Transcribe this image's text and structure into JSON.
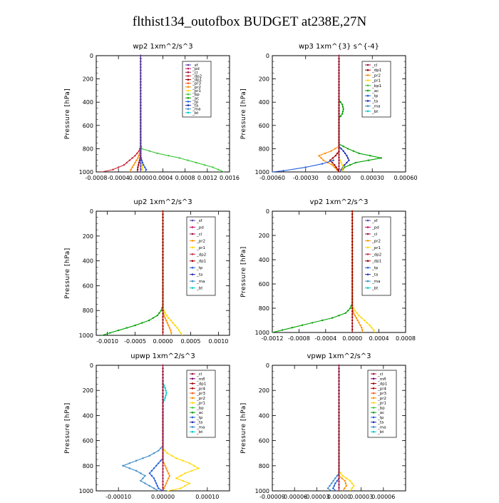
{
  "title": "flthist134_outofbox  BUDGET at238E,27N",
  "colors": {
    "sf": "#5a3fb0",
    "pd": "#d01070",
    "cl": "#a01040",
    "dp2": "#c8283c",
    "dp1": "#a00000",
    "pr3": "#ff5a1e",
    "pr2": "#ff8c00",
    "pr1": "#ffd700",
    "bp": "#3cc83c",
    "ac": "#00a000",
    "tp": "#1e5adc",
    "ta": "#1e28b4",
    "ma": "#3c8cc8",
    "bt": "#00c8c8",
    "mfl": "#780078",
    "pr4": "#b40000"
  },
  "chart_data": [
    {
      "type": "line",
      "title": "wp2   1xm^2/s^3",
      "ylabel": "Pressure [hPa]",
      "xlim": [
        -0.0008,
        0.0016
      ],
      "xticks": [
        -0.0008,
        -0.0004,
        0.0,
        0.0004,
        0.0008,
        0.0012,
        0.0016
      ],
      "xtick_labels": [
        "-0.0008",
        "-0.0004",
        "0.00000",
        "0.0004",
        "0.0008",
        "0.0012",
        "0.0016"
      ],
      "ylim": [
        0,
        1000
      ],
      "yticks": [
        0,
        200,
        400,
        600,
        800,
        1000
      ],
      "legend": [
        "_sf",
        "_pd",
        "_cl",
        "_dp2",
        "_dp1",
        "_pr3",
        "_pr2",
        "_pr1",
        "_bp",
        "_ac",
        "_tp",
        "_ta",
        "_ma",
        "_bt"
      ],
      "series": [
        {
          "key": "bp",
          "p": [
            0,
            760,
            800,
            840,
            880,
            920,
            960,
            1000
          ],
          "x": [
            0,
            0,
            2e-05,
            0.0003,
            0.0007,
            0.001,
            0.0013,
            0.0015
          ]
        },
        {
          "key": "dp2",
          "p": [
            0,
            780,
            820,
            860,
            900,
            940,
            980,
            1000
          ],
          "x": [
            0,
            0,
            -3e-05,
            -0.0001,
            -0.0002,
            -0.0003,
            -0.0005,
            -0.0007
          ]
        },
        {
          "key": "pr2",
          "p": [
            0,
            800,
            840,
            880,
            920,
            960,
            1000
          ],
          "x": [
            0,
            0,
            -2e-05,
            -5e-05,
            -0.0001,
            -0.00015,
            -0.0002
          ]
        },
        {
          "key": "pr1",
          "p": [
            0,
            840,
            880,
            920,
            960,
            1000
          ],
          "x": [
            0,
            0,
            1e-05,
            2e-05,
            3e-05,
            2e-05
          ]
        },
        {
          "key": "tp",
          "p": [
            0,
            860,
            900,
            940,
            980,
            1000
          ],
          "x": [
            0,
            0,
            2e-05,
            5e-05,
            0.0001,
            8e-05
          ]
        },
        {
          "key": "dp1",
          "p": [
            0,
            200,
            400,
            600,
            800,
            840,
            880,
            920,
            960,
            1000
          ],
          "x": [
            0,
            0,
            0,
            0,
            0,
            0,
            -1e-05,
            -3e-05,
            -5e-05,
            -6e-05
          ]
        },
        {
          "key": "sf",
          "p": [
            0,
            200,
            400,
            600,
            800,
            900,
            1000
          ],
          "x": [
            0,
            0,
            0,
            0,
            0,
            0,
            0
          ]
        }
      ]
    },
    {
      "type": "line",
      "title": "wp3   1xm^{3} s^{-4}",
      "ylabel": "Pressure [hPa]",
      "xlim": [
        -0.0006,
        0.0006
      ],
      "xticks": [
        -0.0006,
        -0.0003,
        0.0,
        0.0003,
        0.0006
      ],
      "xtick_labels": [
        "-0.00060",
        "-0.00030",
        "0.00000",
        "0.00030",
        "0.00060"
      ],
      "ylim": [
        0,
        1000
      ],
      "yticks": [
        0,
        200,
        400,
        600,
        800,
        1000
      ],
      "legend": [
        "_cl",
        "_dp1",
        "_pr2",
        "_pr1",
        "_bp1",
        "_ac",
        "_tp",
        "_ta",
        "_ma",
        "_bt"
      ],
      "series": [
        {
          "key": "ac",
          "p": [
            0,
            760,
            800,
            840,
            880,
            920,
            960,
            1000
          ],
          "x": [
            0,
            0,
            8e-05,
            0.00018,
            0.00038,
            0.00015,
            5e-05,
            2e-05
          ]
        },
        {
          "key": "ac",
          "p": [
            380,
            420,
            460,
            500,
            540
          ],
          "x": [
            0,
            3e-05,
            4e-05,
            3e-05,
            0
          ]
        },
        {
          "key": "pr2",
          "p": [
            0,
            780,
            820,
            860,
            900,
            940,
            980,
            1000
          ],
          "x": [
            0,
            0,
            -7e-05,
            -0.00018,
            -0.00014,
            -6e-05,
            -2e-05,
            0
          ]
        },
        {
          "key": "ta",
          "p": [
            0,
            780,
            820,
            860,
            900,
            940,
            980,
            1000
          ],
          "x": [
            0,
            0,
            4e-05,
            7e-05,
            9e-05,
            5e-05,
            2e-05,
            1e-05
          ]
        },
        {
          "key": "dp1",
          "p": [
            0,
            820,
            860,
            900,
            940,
            980,
            1000
          ],
          "x": [
            0,
            0,
            -3e-05,
            -8e-05,
            -4e-05,
            -1e-05,
            0
          ]
        },
        {
          "key": "tp",
          "p": [
            900,
            930,
            960,
            990,
            1000
          ],
          "x": [
            -5e-05,
            -0.00015,
            -0.0003,
            -0.0005,
            -0.0006
          ]
        },
        {
          "key": "pr1",
          "p": [
            0,
            880,
            920,
            960,
            1000
          ],
          "x": [
            0,
            0,
            2e-05,
            4e-05,
            2e-05
          ]
        },
        {
          "key": "cl",
          "p": [
            0,
            200,
            400,
            600,
            800,
            900,
            1000
          ],
          "x": [
            0,
            0,
            0,
            0,
            0,
            0,
            0
          ]
        }
      ]
    },
    {
      "type": "line",
      "title": "up2   1xm^2/s^3",
      "ylabel": "Pressure [hPa]",
      "xlim": [
        -0.0012,
        0.0012
      ],
      "xticks": [
        -0.001,
        -0.0005,
        0.0,
        0.0005,
        0.001
      ],
      "xtick_labels": [
        "-0.0010",
        "-0.0005",
        "0.0000",
        "0.0005",
        "0.0010"
      ],
      "ylim": [
        0,
        1000
      ],
      "yticks": [
        0,
        200,
        400,
        600,
        800,
        1000
      ],
      "legend": [
        "_sf",
        "_pd",
        "_cl",
        "_pr2",
        "_pr1",
        "_dp2",
        "_dp1",
        "_tp",
        "_ta",
        "_ma",
        "_bt"
      ],
      "series": [
        {
          "key": "ac",
          "p": [
            0,
            760,
            800,
            840,
            880,
            920,
            960,
            1000
          ],
          "x": [
            0,
            0,
            -3e-05,
            -0.0001,
            -0.00025,
            -0.0005,
            -0.0008,
            -0.0011
          ]
        },
        {
          "key": "pr1",
          "p": [
            0,
            780,
            820,
            860,
            900,
            940,
            980,
            1000
          ],
          "x": [
            0,
            0,
            4e-05,
            0.0001,
            0.00018,
            0.00026,
            0.00032,
            0.00035
          ]
        },
        {
          "key": "pr2",
          "p": [
            0,
            800,
            840,
            880,
            920,
            960,
            1000
          ],
          "x": [
            0,
            0,
            2e-05,
            6e-05,
            0.0001,
            0.00014,
            0.00016
          ]
        },
        {
          "key": "dp1",
          "p": [
            0,
            200,
            400,
            600,
            800,
            1000
          ],
          "x": [
            0,
            0,
            0,
            0,
            0,
            0
          ]
        }
      ]
    },
    {
      "type": "line",
      "title": "vp2   1xm^2/s^3",
      "ylabel": "Pressure [hPa]",
      "xlim": [
        -0.0012,
        0.0008
      ],
      "xticks": [
        -0.0012,
        -0.0008,
        -0.0004,
        0.0,
        0.0004,
        0.0008
      ],
      "xtick_labels": [
        "-0.0012",
        "-0.0008",
        "-0.0004",
        "0.0000",
        "0.0004",
        "0.0008"
      ],
      "ylim": [
        0,
        1000
      ],
      "yticks": [
        0,
        200,
        400,
        600,
        800,
        1000
      ],
      "legend": [
        "_sf",
        "_pd",
        "_cl",
        "_pr2",
        "_pr1",
        "_dp2",
        "_dp1",
        "_tp",
        "_ta",
        "_ma",
        "_bt"
      ],
      "series": [
        {
          "key": "ac",
          "p": [
            0,
            760,
            800,
            840,
            880,
            920,
            960,
            1000
          ],
          "x": [
            0,
            0,
            -3e-05,
            -0.0001,
            -0.0003,
            -0.0006,
            -0.0009,
            -0.0012
          ]
        },
        {
          "key": "pr1",
          "p": [
            0,
            780,
            820,
            860,
            900,
            940,
            980,
            1000
          ],
          "x": [
            0,
            0,
            4e-05,
            0.0001,
            0.00018,
            0.00026,
            0.00032,
            0.00034
          ]
        },
        {
          "key": "pr2",
          "p": [
            0,
            800,
            840,
            880,
            920,
            960,
            1000
          ],
          "x": [
            0,
            0,
            2e-05,
            6e-05,
            0.0001,
            0.00014,
            0.00016
          ]
        },
        {
          "key": "dp1",
          "p": [
            0,
            200,
            400,
            600,
            800,
            1000
          ],
          "x": [
            0,
            0,
            0,
            0,
            0,
            0
          ]
        }
      ]
    },
    {
      "type": "line",
      "title": "upwp   1xm^2/s^3",
      "ylabel": "Pressure [hPa]",
      "xlim": [
        -0.00015,
        0.00015
      ],
      "xticks": [
        -0.0001,
        0.0,
        0.0001
      ],
      "xtick_labels": [
        "-0.00010",
        "0.00000",
        "0.00010"
      ],
      "ylim": [
        0,
        1000
      ],
      "yticks": [
        0,
        200,
        400,
        600,
        800,
        1000
      ],
      "legend": [
        "_cl",
        "_mfl",
        "_dp1",
        "_pr4",
        "_pr3",
        "_pr2",
        "_pr1",
        "_bp",
        "_ac",
        "_tp",
        "_ta",
        "_ma",
        "_bt"
      ],
      "series": [
        {
          "key": "ma",
          "p": [
            0,
            640,
            680,
            720,
            760,
            800,
            840,
            880,
            920,
            960,
            1000
          ],
          "x": [
            0,
            0,
            -1e-05,
            -3e-05,
            -6e-05,
            -9e-05,
            -6e-05,
            -4e-05,
            -5e-05,
            -3e-05,
            -1e-05
          ]
        },
        {
          "key": "pr1",
          "p": [
            0,
            660,
            700,
            740,
            780,
            820,
            860,
            900,
            940,
            980,
            1000
          ],
          "x": [
            0,
            0,
            1e-05,
            3e-05,
            6e-05,
            8e-05,
            5e-05,
            3e-05,
            6e-05,
            4e-05,
            1e-05
          ]
        },
        {
          "key": "bt",
          "p": [
            140,
            180,
            220,
            260,
            300
          ],
          "x": [
            0,
            5e-06,
            8e-06,
            5e-06,
            0
          ]
        },
        {
          "key": "tp",
          "p": [
            0,
            740,
            780,
            820,
            860,
            900,
            940,
            980,
            1000
          ],
          "x": [
            0,
            0,
            -1e-05,
            -2e-05,
            -3e-05,
            -2e-05,
            -1.5e-05,
            -1e-05,
            0
          ]
        },
        {
          "key": "pr2",
          "p": [
            0,
            760,
            800,
            840,
            880,
            920,
            960,
            1000
          ],
          "x": [
            0,
            0,
            5e-06,
            1e-05,
            1.5e-05,
            1e-05,
            5e-06,
            0
          ]
        },
        {
          "key": "cl",
          "p": [
            0,
            200,
            400,
            600,
            800,
            900,
            1000
          ],
          "x": [
            0,
            0,
            0,
            0,
            0,
            0,
            0
          ]
        }
      ]
    },
    {
      "type": "line",
      "title": "vpwp   1xm^2/s^3",
      "ylabel": "Pressure [hPa]",
      "xlim": [
        -9e-05,
        9e-05
      ],
      "xticks": [
        -9e-05,
        -6e-05,
        -3e-05,
        0.0,
        3e-05,
        6e-05
      ],
      "xtick_labels": [
        "-0.00009",
        "-0.00006",
        "-0.00003",
        "0.00000",
        "0.00003",
        "0.00006"
      ],
      "ylim": [
        0,
        1000
      ],
      "yticks": [
        0,
        200,
        400,
        600,
        800,
        1000
      ],
      "legend": [
        "_cl",
        "_mfl",
        "_dp1",
        "_pr4",
        "_pr3",
        "_pr2",
        "_pr1",
        "_bp",
        "_ac",
        "_tp",
        "_ta",
        "_ma",
        "_bt"
      ],
      "series": [
        {
          "key": "pr1",
          "p": [
            0,
            840,
            880,
            920,
            960,
            1000
          ],
          "x": [
            0,
            0,
            5e-06,
            1.5e-05,
            2e-05,
            1.5e-05
          ]
        },
        {
          "key": "ma",
          "p": [
            0,
            860,
            900,
            940,
            980,
            1000
          ],
          "x": [
            0,
            0,
            -5e-06,
            -1e-05,
            -1.5e-05,
            -1e-05
          ]
        },
        {
          "key": "pr2",
          "p": [
            0,
            880,
            920,
            960,
            1000
          ],
          "x": [
            0,
            0,
            8e-06,
            1e-05,
            5e-06
          ]
        },
        {
          "key": "tp",
          "p": [
            0,
            900,
            940,
            980,
            1000
          ],
          "x": [
            0,
            0,
            -5e-06,
            -8e-06,
            -4e-06
          ]
        },
        {
          "key": "cl",
          "p": [
            0,
            200,
            400,
            600,
            800,
            900,
            1000
          ],
          "x": [
            0,
            0,
            0,
            0,
            0,
            0,
            0
          ]
        }
      ]
    }
  ]
}
